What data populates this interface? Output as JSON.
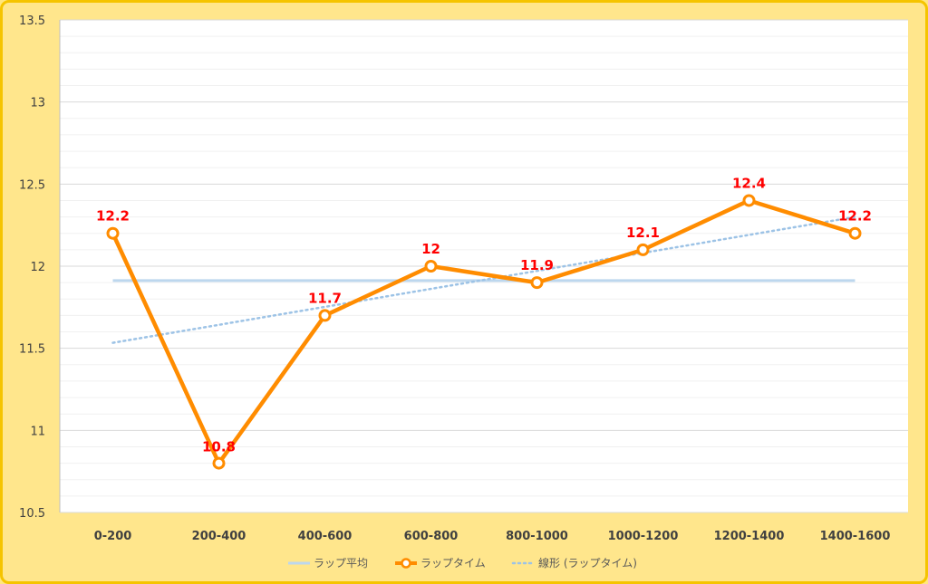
{
  "chart_data": {
    "type": "line",
    "categories": [
      "0-200",
      "200-400",
      "400-600",
      "600-800",
      "800-1000",
      "1000-1200",
      "1200-1400",
      "1400-1600"
    ],
    "series": [
      {
        "name": "ラップ平均",
        "values": [
          11.9125,
          11.9125,
          11.9125,
          11.9125,
          11.9125,
          11.9125,
          11.9125,
          11.9125
        ],
        "color": "#BDD7EE",
        "style": "solid"
      },
      {
        "name": "ラップタイム",
        "values": [
          12.2,
          10.8,
          11.7,
          12.0,
          11.9,
          12.1,
          12.4,
          12.2
        ],
        "color": "#FF8C00",
        "style": "solid-markers",
        "data_labels": [
          "12.2",
          "10.8",
          "11.7",
          "12",
          "11.9",
          "12.1",
          "12.4",
          "12.2"
        ]
      },
      {
        "name": "線形 (ラップタイム)",
        "values": [
          11.5333,
          11.6429,
          11.7524,
          11.8619,
          11.9714,
          12.081,
          12.1905,
          12.3
        ],
        "color": "#9DC3E6",
        "style": "dotted"
      }
    ],
    "yticks": [
      "10.5",
      "11",
      "11.5",
      "12",
      "12.5",
      "13",
      "13.5"
    ],
    "ylim": [
      10.5,
      13.5
    ],
    "grid": true,
    "legend_position": "bottom",
    "title": "",
    "xlabel": "",
    "ylabel": "",
    "colors": {
      "background": "#FFE68C",
      "border": "#F5C400",
      "plot": "#FFFFFF",
      "grid": "#D9D9D9",
      "label": "#FF0000"
    }
  }
}
